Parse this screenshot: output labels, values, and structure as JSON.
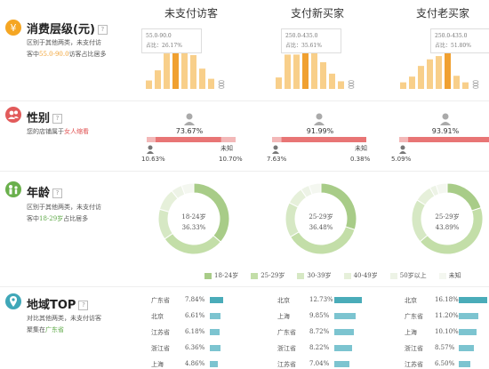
{
  "columns": [
    "未支付访客",
    "支付新买家",
    "支付老买家"
  ],
  "sections": {
    "consumption": {
      "title": "消费层级(元)",
      "desc_pre": "区别于其他两类，未支付访客中",
      "desc_hl": "55.0-90.0",
      "desc_post": "访客占比居多"
    },
    "gender": {
      "title": "性别",
      "desc_pre": "您的店铺属于",
      "desc_hl": "女人缩看"
    },
    "age": {
      "title": "年龄",
      "desc_pre": "区别于其他两类，未支付访客中",
      "desc_hl": "18-29岁",
      "desc_post": "占比居多"
    },
    "region": {
      "title": "地域TOP",
      "desc_pre": "对比其他两类，未支付访客聚集在",
      "desc_hl": "广东省"
    }
  },
  "colors": {
    "bar_light": "#f8cf8a",
    "bar_dark": "#f0a030",
    "gender_female": "#e87575",
    "gender_female_light": "#f3b8b8",
    "donut_palette": [
      "#a8cc88",
      "#c3dea8",
      "#d6e8c4",
      "#e6f0da",
      "#edf3e6",
      "#f4f7f0"
    ],
    "region_bar": "#7cc4d0",
    "region_bar_top": "#4aacb9"
  },
  "chart_data": [
    {
      "type": "bar",
      "title": "未支付访客",
      "values": [
        10,
        22,
        42,
        70,
        55,
        40,
        24,
        12
      ],
      "tooltip": {
        "range": "55.0-90.0",
        "share_label": "占比：",
        "share": "26.17%"
      },
      "highlight_index": 3
    },
    {
      "type": "bar",
      "title": "支付新买家",
      "values": [
        12,
        36,
        36,
        62,
        45,
        28,
        16,
        8
      ],
      "tooltip": {
        "range": "250.0-435.0",
        "share_label": "占比：",
        "share": "35.61%"
      },
      "highlight_index": 3
    },
    {
      "type": "bar",
      "title": "支付老买家",
      "values": [
        8,
        15,
        28,
        36,
        40,
        72,
        16,
        8
      ],
      "tooltip": {
        "range": "250.0-435.0",
        "share_label": "占比：",
        "share": "51.80%"
      },
      "highlight_index": 5
    },
    {
      "type": "bar",
      "title": "性别",
      "groups": [
        {
          "name": "未支付访客",
          "female_pct": "73.67%",
          "left_value": "10.63%",
          "right_label": "未知",
          "right_value": "10.70%",
          "female_share": 73.67
        },
        {
          "name": "支付新买家",
          "female_pct": "91.99%",
          "left_value": "7.63%",
          "right_label": "未知",
          "right_value": "0.38%",
          "female_share": 91.99
        },
        {
          "name": "支付老买家",
          "female_pct": "93.91%",
          "left_value": "5.09%",
          "right_label": "",
          "right_value": "",
          "female_share": 93.91
        }
      ]
    },
    {
      "type": "pie",
      "title": "年龄",
      "legend": [
        "18-24岁",
        "25-29岁",
        "30-39岁",
        "40-49岁",
        "50岁以上",
        "未知"
      ],
      "series": [
        {
          "name": "未支付访客",
          "center_label": "18-24岁",
          "center_value": "36.33%",
          "values": [
            36.33,
            29.0,
            14.0,
            10.0,
            5.0,
            5.67
          ]
        },
        {
          "name": "支付新买家",
          "center_label": "25-29岁",
          "center_value": "36.48%",
          "values": [
            30.0,
            36.48,
            16.0,
            8.0,
            4.0,
            5.52
          ]
        },
        {
          "name": "支付老买家",
          "center_label": "25-29岁",
          "center_value": "43.89%",
          "values": [
            20.0,
            43.89,
            20.0,
            8.0,
            3.0,
            5.11
          ]
        }
      ]
    },
    {
      "type": "bar",
      "title": "地域TOP",
      "series": [
        {
          "name": "未支付访客",
          "rows": [
            {
              "region": "广东省",
              "value": "7.84%",
              "v": 7.84
            },
            {
              "region": "北京",
              "value": "6.61%",
              "v": 6.61
            },
            {
              "region": "江苏省",
              "value": "6.18%",
              "v": 6.18
            },
            {
              "region": "浙江省",
              "value": "6.36%",
              "v": 6.36
            },
            {
              "region": "上海",
              "value": "4.86%",
              "v": 4.86
            }
          ]
        },
        {
          "name": "支付新买家",
          "rows": [
            {
              "region": "北京",
              "value": "12.73%",
              "v": 12.73
            },
            {
              "region": "上海",
              "value": "9.85%",
              "v": 9.85
            },
            {
              "region": "广东省",
              "value": "8.72%",
              "v": 8.72
            },
            {
              "region": "浙江省",
              "value": "8.22%",
              "v": 8.22
            },
            {
              "region": "江苏省",
              "value": "7.04%",
              "v": 7.04
            }
          ]
        },
        {
          "name": "支付老买家",
          "rows": [
            {
              "region": "北京",
              "value": "16.18%",
              "v": 16.18
            },
            {
              "region": "广东省",
              "value": "11.20%",
              "v": 11.2
            },
            {
              "region": "上海",
              "value": "10.10%",
              "v": 10.1
            },
            {
              "region": "浙江省",
              "value": "8.57%",
              "v": 8.57
            },
            {
              "region": "江苏省",
              "value": "6.50%",
              "v": 6.5
            }
          ]
        }
      ]
    }
  ]
}
